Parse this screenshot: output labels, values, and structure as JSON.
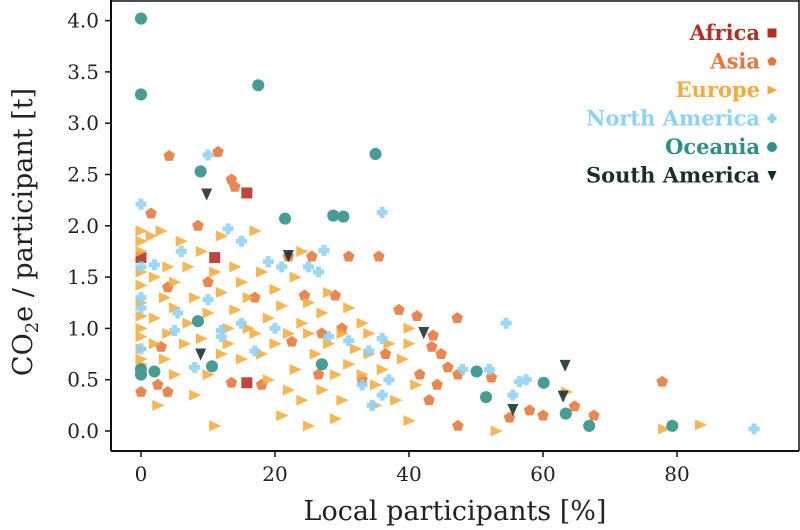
{
  "chart_data": {
    "type": "scatter",
    "xlabel": "Local participants [%]",
    "ylabel_main": "CO",
    "ylabel_sub": "2",
    "ylabel_rest": "e / participant [t]",
    "xlim": [
      -5,
      97
    ],
    "ylim": [
      -0.15,
      4.2
    ],
    "xticks": [
      0,
      20,
      40,
      60,
      80
    ],
    "xtick_labels": [
      "0",
      "20",
      "40",
      "60",
      "80"
    ],
    "yticks": [
      0,
      0.5,
      1,
      1.5,
      2,
      2.5,
      3,
      3.5,
      4
    ],
    "ytick_labels": [
      "0.0",
      "0.5",
      "1.0",
      "1.5",
      "2.0",
      "2.5",
      "3.0",
      "3.5",
      "4.0"
    ],
    "grid": false,
    "legend_placement": "top-right",
    "series": [
      {
        "name": "Africa",
        "marker": "square",
        "color": "#b22f25",
        "points": [
          [
            15.8,
            2.32
          ],
          [
            15.8,
            0.47
          ],
          [
            0,
            1.69
          ],
          [
            11,
            1.69
          ]
        ]
      },
      {
        "name": "Asia",
        "marker": "pentagon",
        "color": "#e5773a",
        "points": [
          [
            4.2,
            2.68
          ],
          [
            11.5,
            2.72
          ],
          [
            13.5,
            2.45
          ],
          [
            14,
            2.38
          ],
          [
            8.5,
            2.0
          ],
          [
            1.5,
            2.12
          ],
          [
            4,
            1.4
          ],
          [
            0,
            0.38
          ],
          [
            2.5,
            0.45
          ],
          [
            4,
            0.38
          ],
          [
            26.5,
            0.55
          ],
          [
            22,
            1.7
          ],
          [
            25.5,
            1.7
          ],
          [
            31,
            1.7
          ],
          [
            35.5,
            1.7
          ],
          [
            29,
            1.32
          ],
          [
            24.4,
            1.32
          ],
          [
            38.5,
            1.18
          ],
          [
            41.2,
            1.12
          ],
          [
            47.2,
            1.1
          ],
          [
            43.6,
            0.93
          ],
          [
            43.4,
            0.82
          ],
          [
            44.8,
            0.75
          ],
          [
            45.8,
            0.62
          ],
          [
            41.6,
            0.55
          ],
          [
            47.3,
            0.55
          ],
          [
            44.2,
            0.45
          ],
          [
            43,
            0.3
          ],
          [
            52.3,
            0.52
          ],
          [
            55,
            0.13
          ],
          [
            58,
            0.2
          ],
          [
            60,
            0.15
          ],
          [
            64.7,
            0.24
          ],
          [
            67.6,
            0.15
          ],
          [
            47.3,
            0.05
          ],
          [
            77.8,
            0.48
          ],
          [
            13.5,
            0.47
          ],
          [
            18,
            0.45
          ],
          [
            22.5,
            0.87
          ],
          [
            27,
            0.95
          ],
          [
            30,
            1.0
          ],
          [
            17,
            1.3
          ],
          [
            10,
            1.45
          ],
          [
            33,
            0.5
          ],
          [
            3,
            0.82
          ],
          [
            36.5,
            0.75
          ]
        ]
      },
      {
        "name": "Europe",
        "marker": "triangle-right",
        "color": "#f5ac3c",
        "points": [
          [
            0,
            1.95
          ],
          [
            0,
            1.85
          ],
          [
            0,
            1.75
          ],
          [
            0,
            1.55
          ],
          [
            0,
            1.42
          ],
          [
            0,
            1.25
          ],
          [
            0,
            1.12
          ],
          [
            0,
            1.0
          ],
          [
            0,
            0.92
          ],
          [
            0,
            0.8
          ],
          [
            0,
            0.7
          ],
          [
            0,
            0.65
          ],
          [
            1.5,
            1.9
          ],
          [
            2,
            1.5
          ],
          [
            2,
            1.1
          ],
          [
            2,
            0.85
          ],
          [
            2.5,
            0.25
          ],
          [
            3,
            1.95
          ],
          [
            3.5,
            1.3
          ],
          [
            3.5,
            0.7
          ],
          [
            4,
            1.6
          ],
          [
            4,
            0.95
          ],
          [
            5,
            1.45
          ],
          [
            5,
            1.2
          ],
          [
            5,
            0.55
          ],
          [
            6,
            1.85
          ],
          [
            6.5,
            0.85
          ],
          [
            7,
            1.6
          ],
          [
            7,
            1.05
          ],
          [
            8,
            1.3
          ],
          [
            8,
            0.35
          ],
          [
            9,
            1.75
          ],
          [
            9,
            0.9
          ],
          [
            10,
            1.15
          ],
          [
            10,
            0.55
          ],
          [
            11,
            1.55
          ],
          [
            11,
            0.05
          ],
          [
            12,
            1.35
          ],
          [
            12,
            0.75
          ],
          [
            13,
            1.0
          ],
          [
            13,
            0.85
          ],
          [
            14,
            1.6
          ],
          [
            14,
            1.18
          ],
          [
            15,
            1.45
          ],
          [
            15,
            0.7
          ],
          [
            16,
            1.0
          ],
          [
            16,
            1.3
          ],
          [
            17,
            1.95
          ],
          [
            17,
            0.95
          ],
          [
            18,
            1.55
          ],
          [
            18,
            0.75
          ],
          [
            19,
            1.1
          ],
          [
            19,
            0.5
          ],
          [
            20,
            1.38
          ],
          [
            20,
            0.85
          ],
          [
            21,
            0.15
          ],
          [
            21,
            1.22
          ],
          [
            22,
            0.95
          ],
          [
            22,
            0.4
          ],
          [
            23,
            1.5
          ],
          [
            23,
            0.6
          ],
          [
            24,
            1.05
          ],
          [
            24,
            0.3
          ],
          [
            25,
            0.95
          ],
          [
            25,
            1.25
          ],
          [
            26,
            0.75
          ],
          [
            27,
            1.15
          ],
          [
            27,
            0.4
          ],
          [
            28,
            0.85
          ],
          [
            28,
            1.35
          ],
          [
            29,
            0.55
          ],
          [
            30,
            0.95
          ],
          [
            30,
            0.3
          ],
          [
            31,
            1.2
          ],
          [
            31,
            0.65
          ],
          [
            32,
            0.8
          ],
          [
            33,
            0.55
          ],
          [
            33,
            1.05
          ],
          [
            34,
            0.75
          ],
          [
            35,
            0.45
          ],
          [
            36,
            0.6
          ],
          [
            37,
            0.85
          ],
          [
            38,
            0.3
          ],
          [
            39,
            0.7
          ],
          [
            40,
            1.0
          ],
          [
            40,
            0.1
          ],
          [
            41,
            0.45
          ],
          [
            35,
            0.25
          ],
          [
            29,
            0.12
          ],
          [
            25,
            0.05
          ],
          [
            53,
            0.0
          ],
          [
            63.5,
            0.38
          ],
          [
            78,
            0.02
          ],
          [
            83.5,
            0.06
          ],
          [
            40,
            0.85
          ],
          [
            12,
            1.9
          ],
          [
            24,
            1.75
          ],
          [
            34,
            0.95
          ]
        ]
      },
      {
        "name": "North America",
        "marker": "plus",
        "color": "#8fd2f4",
        "points": [
          [
            0,
            2.21
          ],
          [
            10,
            2.69
          ],
          [
            36,
            2.13
          ],
          [
            0,
            1.6
          ],
          [
            0,
            1.3
          ],
          [
            0,
            1.2
          ],
          [
            2,
            1.62
          ],
          [
            13,
            1.97
          ],
          [
            15,
            1.85
          ],
          [
            19,
            1.65
          ],
          [
            21,
            1.6
          ],
          [
            25,
            1.6
          ],
          [
            26.5,
            1.55
          ],
          [
            27.3,
            1.76
          ],
          [
            6,
            1.75
          ],
          [
            10,
            1.28
          ],
          [
            5.5,
            1.15
          ],
          [
            5,
            0.98
          ],
          [
            12,
            0.92
          ],
          [
            17,
            0.78
          ],
          [
            20,
            1.0
          ],
          [
            15,
            1.05
          ],
          [
            28,
            0.92
          ],
          [
            31,
            0.88
          ],
          [
            36,
            0.9
          ],
          [
            34,
            0.78
          ],
          [
            33,
            0.45
          ],
          [
            36,
            0.35
          ],
          [
            34.5,
            0.25
          ],
          [
            37,
            0.5
          ],
          [
            48,
            0.6
          ],
          [
            54.5,
            1.05
          ],
          [
            52,
            0.6
          ],
          [
            56.5,
            0.48
          ],
          [
            57.5,
            0.5
          ],
          [
            55.5,
            0.35
          ],
          [
            8,
            0.62
          ],
          [
            0,
            0.8
          ],
          [
            91.5,
            0.02
          ],
          [
            12,
            0.98
          ]
        ]
      },
      {
        "name": "Oceania",
        "marker": "circle",
        "color": "#2e8f88",
        "points": [
          [
            0,
            4.02
          ],
          [
            0,
            3.28
          ],
          [
            17.5,
            3.37
          ],
          [
            35,
            2.7
          ],
          [
            8.9,
            2.53
          ],
          [
            21.5,
            2.07
          ],
          [
            28.7,
            2.1
          ],
          [
            30.2,
            2.09
          ],
          [
            0,
            0.6
          ],
          [
            0,
            0.55
          ],
          [
            2,
            0.58
          ],
          [
            8.5,
            1.07
          ],
          [
            10.6,
            0.63
          ],
          [
            27,
            0.65
          ],
          [
            50.1,
            0.58
          ],
          [
            51.5,
            0.33
          ],
          [
            60.1,
            0.47
          ],
          [
            63.4,
            0.17
          ],
          [
            66.9,
            0.05
          ],
          [
            79.3,
            0.05
          ]
        ]
      },
      {
        "name": "South America",
        "marker": "triangle-down",
        "color": "#17302a",
        "points": [
          [
            9.8,
            2.31
          ],
          [
            22,
            1.71
          ],
          [
            8.9,
            0.75
          ],
          [
            42.2,
            0.96
          ],
          [
            63.3,
            0.64
          ],
          [
            63,
            0.34
          ],
          [
            55.5,
            0.21
          ]
        ]
      }
    ]
  }
}
